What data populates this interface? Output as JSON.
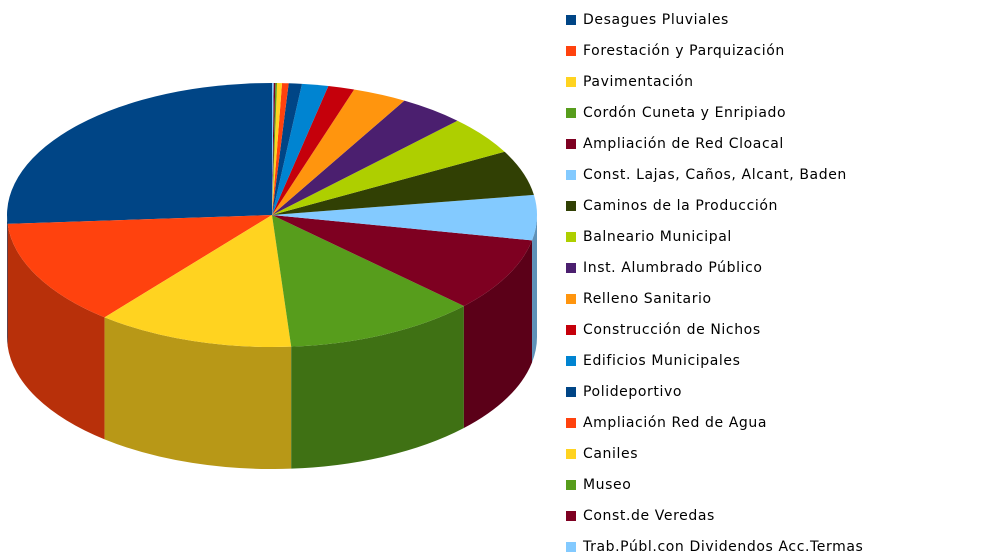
{
  "chart_data": {
    "type": "pie",
    "categories": [
      "Desagues Pluviales",
      "Forestación y Parquización",
      "Pavimentación",
      "Cordón Cuneta y Enripiado",
      "Ampliación de Red Cloacal",
      "Const. Lajas, Caños, Alcant, Baden",
      "Caminos de la Producción",
      "Balneario Municipal",
      "Inst. Alumbrado Público",
      "Relleno Sanitario",
      "Construcción de Nichos",
      "Edificios Municipales",
      "Polideportivo",
      "Ampliación Red de Agua",
      "Caniles",
      "Museo",
      "Const.de Veredas",
      "Trab.Públ.con Dividendos Acc.Termas"
    ],
    "values": [
      26,
      13,
      12,
      11.7,
      9,
      5.5,
      5.5,
      4.7,
      4,
      3.3,
      1.6,
      1.6,
      0.8,
      0.4,
      0.3,
      0.1,
      0.1,
      0.1
    ],
    "colors": [
      "#004586",
      "#ff420e",
      "#ffd320",
      "#579d1c",
      "#7e0021",
      "#83caff",
      "#314004",
      "#aecf00",
      "#4b1f6f",
      "#ff950e",
      "#c5000b",
      "#0084d1",
      "#004586",
      "#ff420e",
      "#ffd320",
      "#579d1c",
      "#7e0021",
      "#83caff"
    ],
    "legend": "right"
  }
}
